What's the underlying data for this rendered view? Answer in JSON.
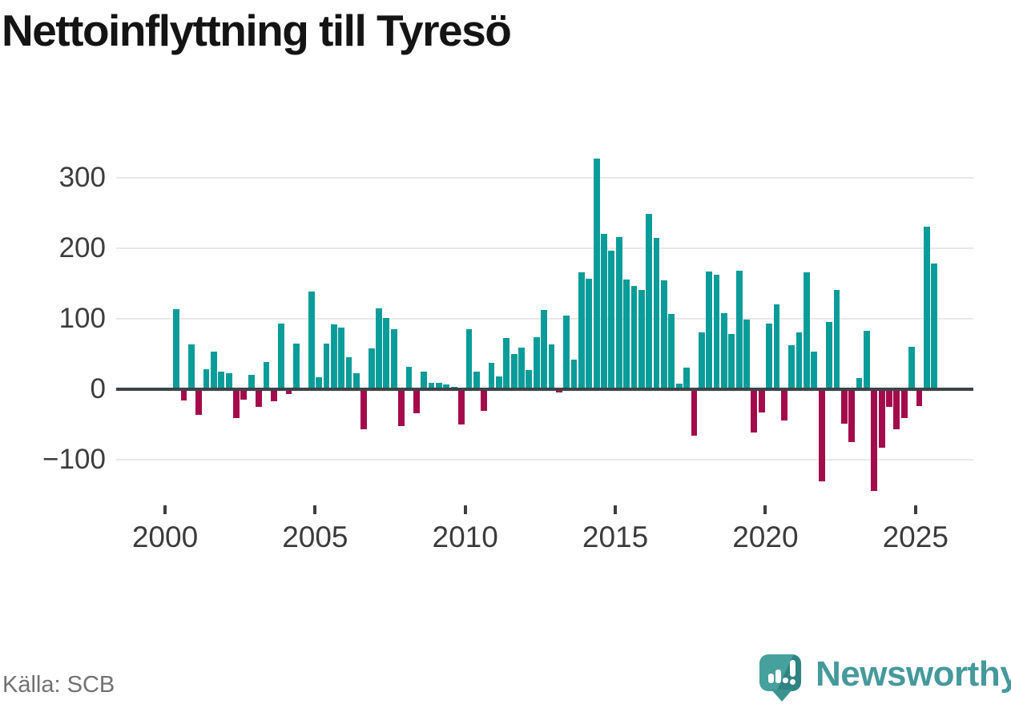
{
  "title": "Nettoinflyttning till Tyresö",
  "source": "Källa: SCB",
  "logo": {
    "wordmark": "Newsworthy",
    "icon_color": "#46a09c",
    "wordmark_color": "#45999b"
  },
  "chart_data": {
    "type": "bar",
    "title": "Nettoinflyttning till Tyresö",
    "frequency": "quarterly",
    "start_year": 2000,
    "start_quarter": 2,
    "values": [
      113,
      -17,
      63,
      -37,
      28,
      53,
      24,
      22,
      -42,
      -15,
      20,
      -25,
      38,
      -18,
      93,
      -7,
      64,
      0,
      138,
      16,
      64,
      91,
      87,
      45,
      22,
      -57,
      57,
      114,
      101,
      85,
      -53,
      31,
      -35,
      24,
      9,
      8,
      6,
      3,
      -51,
      85,
      24,
      -31,
      37,
      18,
      72,
      50,
      59,
      27,
      73,
      112,
      63,
      -5,
      104,
      42,
      165,
      156,
      327,
      220,
      196,
      215,
      155,
      146,
      140,
      248,
      214,
      154,
      106,
      7,
      30,
      -66,
      80,
      167,
      162,
      107,
      78,
      168,
      98,
      -62,
      -34,
      93,
      120,
      -45,
      62,
      80,
      165,
      53,
      -131,
      95,
      140,
      -49,
      -75,
      15,
      82,
      -145,
      -83,
      -25,
      -57,
      -42,
      60,
      -24,
      230,
      178
    ],
    "y_axis": {
      "ticks": [
        {
          "value": 300,
          "label": "300"
        },
        {
          "value": 200,
          "label": "200"
        },
        {
          "value": 100,
          "label": "100"
        },
        {
          "value": 0,
          "label": "0"
        },
        {
          "value": -100,
          "label": "−100"
        }
      ],
      "ylim": [
        -150,
        340
      ],
      "grid": true
    },
    "x_axis": {
      "ticks": [
        {
          "year": 2000,
          "label": "2000"
        },
        {
          "year": 2005,
          "label": "2005"
        },
        {
          "year": 2010,
          "label": "2010"
        },
        {
          "year": 2015,
          "label": "2015"
        },
        {
          "year": 2020,
          "label": "2020"
        },
        {
          "year": 2025,
          "label": "2025"
        }
      ]
    },
    "colors": {
      "positive": "#0a9c99",
      "negative": "#a30b4b"
    },
    "legend": "none"
  }
}
